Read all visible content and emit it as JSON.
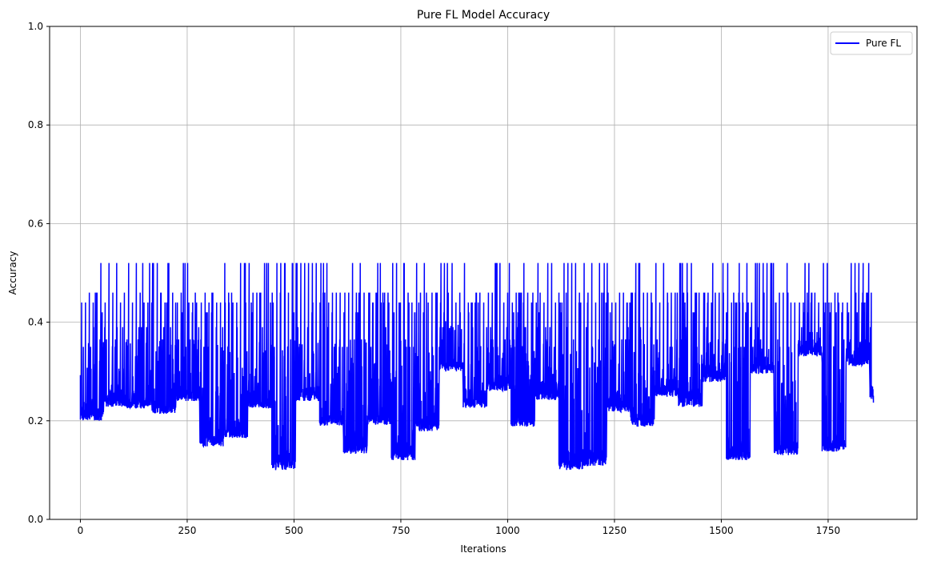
{
  "chart_data": {
    "type": "line",
    "title": "Pure FL Model Accuracy",
    "xlabel": "Iterations",
    "ylabel": "Accuracy",
    "xlim": [
      -72,
      1958
    ],
    "ylim": [
      0,
      1
    ],
    "xticks": [
      0,
      250,
      500,
      750,
      1000,
      1250,
      1500,
      1750
    ],
    "xtick_labels": [
      "0",
      "250",
      "500",
      "750",
      "1000",
      "1250",
      "1500",
      "1750"
    ],
    "yticks": [
      0.0,
      0.2,
      0.4,
      0.6,
      0.8,
      1.0
    ],
    "ytick_labels": [
      "0.0",
      "0.2",
      "0.4",
      "0.6",
      "0.8",
      "1.0"
    ],
    "grid": true,
    "legend_position": "top-right",
    "series": [
      {
        "name": "Pure FL",
        "color": "#0000ff",
        "x_range": [
          0,
          1857
        ],
        "peak_values": [
          0.52,
          0.46,
          0.44,
          0.42,
          0.39,
          0.365,
          0.35
        ],
        "segments": [
          {
            "start": 0,
            "end": 55,
            "floor": 0.2,
            "top": 0.365
          },
          {
            "start": 55,
            "end": 110,
            "floor": 0.228,
            "top": 0.365
          },
          {
            "start": 110,
            "end": 168,
            "floor": 0.225,
            "top": 0.365
          },
          {
            "start": 168,
            "end": 224,
            "floor": 0.214,
            "top": 0.365
          },
          {
            "start": 224,
            "end": 280,
            "floor": 0.24,
            "top": 0.365
          },
          {
            "start": 280,
            "end": 336,
            "floor": 0.148,
            "top": 0.365
          },
          {
            "start": 336,
            "end": 392,
            "floor": 0.165,
            "top": 0.365
          },
          {
            "start": 392,
            "end": 448,
            "floor": 0.225,
            "top": 0.365
          },
          {
            "start": 448,
            "end": 504,
            "floor": 0.1,
            "top": 0.365
          },
          {
            "start": 504,
            "end": 560,
            "floor": 0.24,
            "top": 0.365
          },
          {
            "start": 560,
            "end": 616,
            "floor": 0.19,
            "top": 0.365
          },
          {
            "start": 616,
            "end": 672,
            "floor": 0.133,
            "top": 0.365
          },
          {
            "start": 672,
            "end": 728,
            "floor": 0.19,
            "top": 0.365
          },
          {
            "start": 728,
            "end": 784,
            "floor": 0.12,
            "top": 0.365
          },
          {
            "start": 784,
            "end": 840,
            "floor": 0.178,
            "top": 0.365
          },
          {
            "start": 840,
            "end": 896,
            "floor": 0.3,
            "top": 0.42
          },
          {
            "start": 896,
            "end": 952,
            "floor": 0.226,
            "top": 0.365
          },
          {
            "start": 952,
            "end": 1008,
            "floor": 0.26,
            "top": 0.365
          },
          {
            "start": 1008,
            "end": 1064,
            "floor": 0.188,
            "top": 0.365
          },
          {
            "start": 1064,
            "end": 1120,
            "floor": 0.242,
            "top": 0.365
          },
          {
            "start": 1120,
            "end": 1176,
            "floor": 0.1,
            "top": 0.365
          },
          {
            "start": 1176,
            "end": 1232,
            "floor": 0.108,
            "top": 0.365
          },
          {
            "start": 1232,
            "end": 1288,
            "floor": 0.218,
            "top": 0.365
          },
          {
            "start": 1288,
            "end": 1344,
            "floor": 0.188,
            "top": 0.365
          },
          {
            "start": 1344,
            "end": 1400,
            "floor": 0.248,
            "top": 0.365
          },
          {
            "start": 1400,
            "end": 1456,
            "floor": 0.228,
            "top": 0.365
          },
          {
            "start": 1456,
            "end": 1512,
            "floor": 0.278,
            "top": 0.365
          },
          {
            "start": 1512,
            "end": 1568,
            "floor": 0.12,
            "top": 0.365
          },
          {
            "start": 1568,
            "end": 1624,
            "floor": 0.295,
            "top": 0.365
          },
          {
            "start": 1624,
            "end": 1680,
            "floor": 0.13,
            "top": 0.365
          },
          {
            "start": 1680,
            "end": 1736,
            "floor": 0.33,
            "top": 0.365
          },
          {
            "start": 1736,
            "end": 1792,
            "floor": 0.137,
            "top": 0.365
          },
          {
            "start": 1792,
            "end": 1848,
            "floor": 0.31,
            "top": 0.365
          },
          {
            "start": 1848,
            "end": 1857,
            "floor": 0.235,
            "top": 0.35
          }
        ]
      }
    ]
  }
}
